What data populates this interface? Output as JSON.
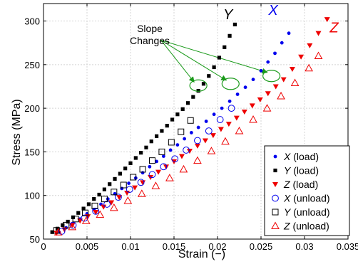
{
  "chart_data": {
    "type": "scatter",
    "xlabel": "Strain (−)",
    "ylabel": "Stress (MPa)",
    "xlim": [
      0,
      0.035
    ],
    "ylim": [
      50,
      320
    ],
    "xticks": [
      "0",
      "0.005",
      "0.01",
      "0.015",
      "0.02",
      "0.025",
      "0.03",
      "0.035"
    ],
    "yticks": [
      "50",
      "100",
      "150",
      "200",
      "250",
      "300"
    ],
    "xtick_values": [
      0,
      0.005,
      0.01,
      0.015,
      0.02,
      0.025,
      0.03,
      0.035
    ],
    "ytick_values": [
      50,
      100,
      150,
      200,
      250,
      300
    ],
    "grid": true,
    "legend_position": "bottom-right",
    "annotation": {
      "line1": "Slope",
      "line2": "Changes"
    },
    "curve_labels": [
      {
        "text": "Y",
        "color": "#000000",
        "x": 0.0212,
        "y": 302
      },
      {
        "text": "X",
        "color": "#0000ee",
        "x": 0.0264,
        "y": 307
      },
      {
        "text": "Z",
        "color": "#ee0000",
        "x": 0.0334,
        "y": 287
      }
    ],
    "slope_change_points": [
      {
        "x": 0.0178,
        "y": 226
      },
      {
        "x": 0.0215,
        "y": 228
      },
      {
        "x": 0.0262,
        "y": 237
      }
    ],
    "annotation_arrow_origin": {
      "x": 0.0135,
      "y": 278
    },
    "series": [
      {
        "legend_letter": "X",
        "legend_rest": "(load)",
        "marker": "dot",
        "color": "#0000ee",
        "x": [
          0.0018,
          0.0026,
          0.0034,
          0.0042,
          0.005,
          0.0058,
          0.0066,
          0.0074,
          0.0082,
          0.009,
          0.0098,
          0.0106,
          0.0114,
          0.0122,
          0.013,
          0.0138,
          0.0146,
          0.0154,
          0.0162,
          0.017,
          0.0178,
          0.0187,
          0.0196,
          0.0205,
          0.0214,
          0.0223,
          0.0232,
          0.0241,
          0.025,
          0.0258,
          0.0266,
          0.0274,
          0.0282
        ],
        "y": [
          58,
          63,
          68,
          73,
          79,
          84,
          90,
          96,
          102,
          108,
          114,
          120,
          126,
          133,
          139,
          145,
          152,
          158,
          165,
          172,
          178,
          185,
          193,
          200,
          208,
          216,
          224,
          233,
          243,
          253,
          263,
          275,
          286
        ]
      },
      {
        "legend_letter": "Y",
        "legend_rest": "(load)",
        "marker": "square-filled",
        "color": "#000000",
        "x": [
          0.001,
          0.0016,
          0.0022,
          0.0028,
          0.0034,
          0.004,
          0.0046,
          0.0052,
          0.0058,
          0.0064,
          0.007,
          0.0076,
          0.0082,
          0.0088,
          0.0094,
          0.01,
          0.0106,
          0.0112,
          0.0118,
          0.0124,
          0.013,
          0.0136,
          0.0142,
          0.0148,
          0.0154,
          0.016,
          0.0166,
          0.0172,
          0.0178,
          0.0184,
          0.019,
          0.0196,
          0.0202,
          0.0208,
          0.0214,
          0.022
        ],
        "y": [
          58,
          62,
          66,
          70,
          75,
          80,
          85,
          90,
          96,
          101,
          107,
          113,
          119,
          125,
          131,
          137,
          143,
          149,
          155,
          162,
          168,
          174,
          180,
          187,
          193,
          199,
          206,
          213,
          220,
          228,
          237,
          247,
          258,
          270,
          283,
          296
        ]
      },
      {
        "legend_letter": "Z",
        "legend_rest": "(load)",
        "marker": "triangle-down",
        "color": "#ee0000",
        "x": [
          0.0015,
          0.0024,
          0.0033,
          0.0042,
          0.0051,
          0.006,
          0.0069,
          0.0078,
          0.0087,
          0.0096,
          0.0105,
          0.0114,
          0.0123,
          0.0132,
          0.0141,
          0.015,
          0.0159,
          0.0168,
          0.0177,
          0.0186,
          0.0195,
          0.0204,
          0.0213,
          0.0222,
          0.0231,
          0.024,
          0.0249,
          0.0258,
          0.0267,
          0.0276,
          0.0286,
          0.0296,
          0.0306,
          0.0316,
          0.0326
        ],
        "y": [
          57,
          61,
          66,
          71,
          76,
          81,
          87,
          92,
          98,
          103,
          109,
          115,
          121,
          127,
          133,
          139,
          145,
          151,
          157,
          163,
          169,
          176,
          182,
          189,
          196,
          203,
          210,
          217,
          225,
          233,
          245,
          259,
          272,
          286,
          302
        ]
      },
      {
        "legend_letter": "X",
        "legend_rest": "(unload)",
        "marker": "circle-open",
        "color": "#0000ee",
        "x": [
          0.0021,
          0.0034,
          0.0047,
          0.006,
          0.0073,
          0.0086,
          0.0099,
          0.0112,
          0.0125,
          0.0138,
          0.0151,
          0.0164,
          0.0177,
          0.019,
          0.0203,
          0.0216
        ],
        "y": [
          59,
          66,
          74,
          82,
          90,
          98,
          107,
          115,
          124,
          133,
          142,
          152,
          163,
          174,
          187,
          200
        ]
      },
      {
        "legend_letter": "Y",
        "legend_rest": "(unload)",
        "marker": "square-open",
        "color": "#000000",
        "x": [
          0.0015,
          0.0026,
          0.0037,
          0.0048,
          0.0059,
          0.007,
          0.0081,
          0.0092,
          0.0103,
          0.0114,
          0.0125,
          0.0136,
          0.0147,
          0.0158,
          0.0169
        ],
        "y": [
          60,
          66,
          73,
          80,
          88,
          96,
          104,
          112,
          121,
          130,
          140,
          150,
          161,
          173,
          186
        ]
      },
      {
        "legend_letter": "Z",
        "legend_rest": "(unload)",
        "marker": "triangle-open",
        "color": "#ee0000",
        "x": [
          0.0017,
          0.0033,
          0.0049,
          0.0065,
          0.0081,
          0.0097,
          0.0113,
          0.0129,
          0.0145,
          0.0161,
          0.0177,
          0.0193,
          0.0209,
          0.0225,
          0.0241,
          0.0257,
          0.0273,
          0.0289,
          0.0305,
          0.0316
        ],
        "y": [
          58,
          64,
          71,
          78,
          86,
          94,
          102,
          111,
          120,
          130,
          140,
          151,
          162,
          174,
          187,
          200,
          214,
          229,
          246,
          260
        ]
      }
    ]
  }
}
